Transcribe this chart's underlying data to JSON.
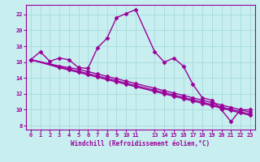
{
  "background_color": "#c8eef0",
  "grid_color": "#aadddd",
  "line_color": "#990099",
  "marker": "D",
  "markersize": 2.5,
  "linewidth": 1.0,
  "xlabel": "Windchill (Refroidissement éolien,°C)",
  "xlim": [
    -0.5,
    23.5
  ],
  "ylim": [
    7.5,
    23.2
  ],
  "yticks": [
    8,
    10,
    12,
    14,
    16,
    18,
    20,
    22
  ],
  "xticks": [
    0,
    1,
    2,
    3,
    4,
    5,
    6,
    7,
    8,
    9,
    10,
    11,
    13,
    14,
    15,
    16,
    17,
    18,
    19,
    20,
    21,
    22,
    23
  ],
  "curve1_x": [
    0,
    1,
    2,
    3,
    4,
    5,
    6,
    7,
    8,
    9,
    10,
    11,
    13,
    14,
    15,
    16,
    17,
    18,
    19,
    20,
    21,
    22,
    23
  ],
  "curve1_y": [
    16.3,
    17.3,
    16.1,
    16.5,
    16.3,
    15.3,
    15.2,
    17.8,
    19.0,
    21.6,
    22.1,
    22.6,
    17.3,
    16.0,
    16.5,
    15.5,
    13.2,
    11.5,
    11.2,
    10.0,
    8.5,
    10.0,
    10.0
  ],
  "curve2_x": [
    0,
    3,
    4,
    5,
    6,
    7,
    8,
    9,
    10,
    11,
    13,
    14,
    15,
    16,
    17,
    18,
    19,
    20,
    21,
    22,
    23
  ],
  "curve2_y": [
    16.3,
    15.5,
    15.3,
    15.1,
    14.8,
    14.5,
    14.2,
    13.9,
    13.6,
    13.3,
    12.7,
    12.4,
    12.1,
    11.8,
    11.5,
    11.2,
    10.9,
    10.6,
    10.3,
    10.0,
    9.7
  ],
  "curve3_x": [
    0,
    3,
    4,
    5,
    6,
    7,
    8,
    9,
    10,
    11,
    13,
    14,
    15,
    16,
    17,
    18,
    19,
    20,
    21,
    22,
    23
  ],
  "curve3_y": [
    16.3,
    15.4,
    15.1,
    14.85,
    14.55,
    14.25,
    13.95,
    13.65,
    13.35,
    13.05,
    12.45,
    12.15,
    11.85,
    11.55,
    11.25,
    10.95,
    10.65,
    10.35,
    10.05,
    9.75,
    9.45
  ],
  "curve4_x": [
    0,
    3,
    4,
    5,
    6,
    7,
    8,
    9,
    10,
    11,
    13,
    14,
    15,
    16,
    17,
    18,
    19,
    20,
    21,
    22,
    23
  ],
  "curve4_y": [
    16.3,
    15.3,
    15.0,
    14.7,
    14.4,
    14.1,
    13.8,
    13.5,
    13.2,
    12.9,
    12.3,
    12.0,
    11.7,
    11.4,
    11.1,
    10.8,
    10.5,
    10.2,
    9.9,
    9.6,
    9.3
  ]
}
